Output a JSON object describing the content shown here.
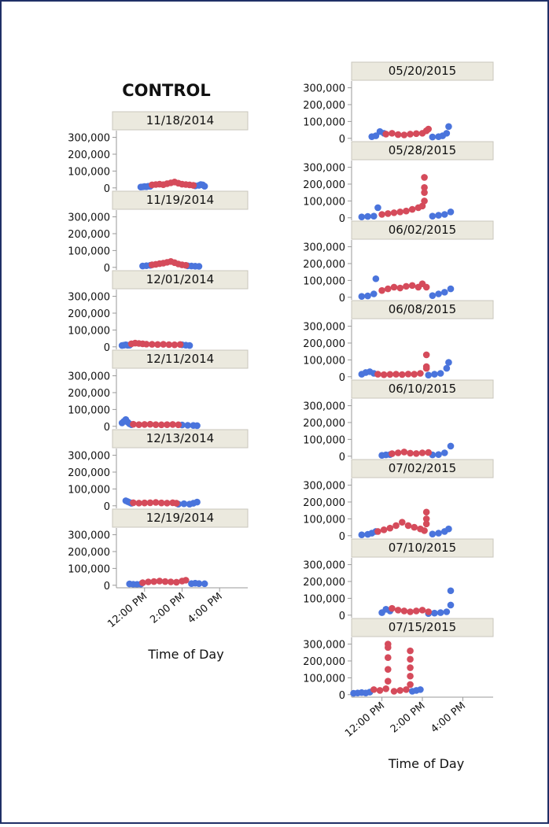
{
  "chart_data": [
    {
      "type": "scatter",
      "title": "CONTROL",
      "x_label": "Time of Day",
      "colors": [
        "#4a74dc",
        "#d54b5b"
      ],
      "xlim": [
        10.5,
        17.5
      ],
      "ylim": [
        -15000,
        340000
      ],
      "xticks": [
        {
          "value": 12,
          "label": "12:00 PM"
        },
        {
          "value": 14,
          "label": "2:00 PM"
        },
        {
          "value": 16,
          "label": "4:00 PM"
        }
      ],
      "yticks": [
        {
          "value": 0,
          "label": "0"
        },
        {
          "value": 100000,
          "label": "100,000"
        },
        {
          "value": 200000,
          "label": "200,000"
        },
        {
          "value": 300000,
          "label": "300,000"
        }
      ],
      "facets": [
        {
          "label": "11/18/2014",
          "series": [
            {
              "x": [
                11.8,
                11.9,
                12.0,
                12.1,
                12.2,
                12.3,
                14.7,
                14.9,
                15.0,
                15.1,
                15.2
              ],
              "values": [
                5000,
                6000,
                8000,
                7000,
                10000,
                9000,
                12000,
                15000,
                20000,
                18000,
                10000
              ]
            },
            {
              "x": [
                12.4,
                12.6,
                12.8,
                13.0,
                13.2,
                13.4,
                13.6,
                13.8,
                14.0,
                14.2,
                14.4,
                14.6
              ],
              "values": [
                18000,
                20000,
                22000,
                19000,
                25000,
                30000,
                35000,
                28000,
                22000,
                20000,
                18000,
                15000
              ]
            }
          ]
        },
        {
          "label": "11/19/2014",
          "series": [
            {
              "x": [
                11.9,
                12.1,
                12.3,
                14.3,
                14.5,
                14.7,
                14.9
              ],
              "values": [
                8000,
                10000,
                12000,
                9000,
                8000,
                7000,
                6000
              ]
            },
            {
              "x": [
                12.4,
                12.6,
                12.8,
                13.0,
                13.2,
                13.4,
                13.6,
                13.8,
                14.0,
                14.2
              ],
              "values": [
                15000,
                18000,
                22000,
                25000,
                30000,
                35000,
                28000,
                20000,
                15000,
                12000
              ]
            }
          ]
        },
        {
          "label": "12/01/2014",
          "series": [
            {
              "x": [
                10.8,
                10.9,
                11.0,
                11.1,
                11.2,
                14.0,
                14.2,
                14.4
              ],
              "values": [
                8000,
                10000,
                12000,
                9000,
                10000,
                12000,
                10000,
                8000
              ]
            },
            {
              "x": [
                11.3,
                11.5,
                11.7,
                11.9,
                12.1,
                12.4,
                12.7,
                13.0,
                13.3,
                13.6,
                13.9
              ],
              "values": [
                18000,
                22000,
                20000,
                18000,
                16000,
                15000,
                14000,
                15000,
                13000,
                12000,
                14000
              ]
            }
          ]
        },
        {
          "label": "12/11/2014",
          "series": [
            {
              "x": [
                10.8,
                10.9,
                11.0,
                11.1,
                11.2,
                11.3,
                14.0,
                14.3,
                14.6,
                14.8
              ],
              "values": [
                20000,
                30000,
                40000,
                25000,
                15000,
                10000,
                8000,
                6000,
                5000,
                4000
              ]
            },
            {
              "x": [
                11.4,
                11.7,
                12.0,
                12.3,
                12.6,
                12.9,
                13.2,
                13.5,
                13.8
              ],
              "values": [
                12000,
                10000,
                11000,
                12000,
                10000,
                9000,
                10000,
                11000,
                9000
              ]
            }
          ]
        },
        {
          "label": "12/13/2014",
          "series": [
            {
              "x": [
                11.0,
                11.1,
                11.2,
                11.3,
                13.8,
                14.1,
                14.4,
                14.6,
                14.8
              ],
              "values": [
                30000,
                25000,
                20000,
                15000,
                10000,
                12000,
                10000,
                15000,
                22000
              ]
            },
            {
              "x": [
                11.4,
                11.7,
                12.0,
                12.3,
                12.6,
                12.9,
                13.2,
                13.5,
                13.7
              ],
              "values": [
                18000,
                16000,
                17000,
                18000,
                20000,
                17000,
                16000,
                18000,
                15000
              ]
            }
          ]
        },
        {
          "label": "12/19/2014",
          "series": [
            {
              "x": [
                11.2,
                11.4,
                11.6,
                11.8,
                14.5,
                14.7,
                14.9,
                15.2
              ],
              "values": [
                8000,
                6000,
                5000,
                7000,
                10000,
                12000,
                10000,
                9000
              ]
            },
            {
              "x": [
                11.9,
                12.2,
                12.5,
                12.8,
                13.1,
                13.4,
                13.7,
                14.0,
                14.2
              ],
              "values": [
                15000,
                20000,
                22000,
                25000,
                22000,
                20000,
                18000,
                25000,
                30000
              ]
            }
          ]
        }
      ]
    },
    {
      "type": "scatter",
      "x_label": "Time of Day",
      "colors": [
        "#4a74dc",
        "#d54b5b"
      ],
      "xlim": [
        10.5,
        17.5
      ],
      "ylim": [
        -15000,
        340000
      ],
      "xticks": [
        {
          "value": 12,
          "label": "12:00 PM"
        },
        {
          "value": 14,
          "label": "2:00 PM"
        },
        {
          "value": 16,
          "label": "4:00 PM"
        }
      ],
      "yticks": [
        {
          "value": 0,
          "label": "0"
        },
        {
          "value": 100000,
          "label": "100,000"
        },
        {
          "value": 200000,
          "label": "200,000"
        },
        {
          "value": 300000,
          "label": "300,000"
        }
      ],
      "facets": [
        {
          "label": "05/20/2015",
          "series": [
            {
              "x": [
                11.5,
                11.7,
                11.9,
                12.1,
                14.5,
                14.8,
                15.0,
                15.2,
                15.3
              ],
              "values": [
                10000,
                15000,
                40000,
                30000,
                8000,
                10000,
                15000,
                30000,
                70000
              ]
            },
            {
              "x": [
                12.2,
                12.5,
                12.8,
                13.1,
                13.4,
                13.7,
                14.0,
                14.2,
                14.3
              ],
              "values": [
                25000,
                30000,
                22000,
                20000,
                25000,
                28000,
                30000,
                45000,
                55000
              ]
            }
          ]
        },
        {
          "label": "05/28/2015",
          "series": [
            {
              "x": [
                11.0,
                11.3,
                11.6,
                11.8,
                14.5,
                14.8,
                15.1,
                15.4
              ],
              "values": [
                5000,
                8000,
                10000,
                60000,
                10000,
                15000,
                20000,
                35000
              ]
            },
            {
              "x": [
                12.0,
                12.3,
                12.6,
                12.9,
                13.2,
                13.5,
                13.8,
                14.0,
                14.1,
                14.1,
                14.1,
                14.1
              ],
              "values": [
                20000,
                25000,
                30000,
                35000,
                40000,
                50000,
                60000,
                70000,
                100000,
                150000,
                180000,
                240000
              ]
            }
          ]
        },
        {
          "label": "06/02/2015",
          "series": [
            {
              "x": [
                11.0,
                11.3,
                11.6,
                11.7,
                14.5,
                14.8,
                15.1,
                15.4
              ],
              "values": [
                5000,
                8000,
                20000,
                110000,
                10000,
                20000,
                30000,
                50000
              ]
            },
            {
              "x": [
                12.0,
                12.3,
                12.6,
                12.9,
                13.2,
                13.5,
                13.8,
                14.0,
                14.2
              ],
              "values": [
                40000,
                50000,
                60000,
                55000,
                65000,
                70000,
                60000,
                80000,
                60000
              ]
            }
          ]
        },
        {
          "label": "06/08/2015",
          "series": [
            {
              "x": [
                11.0,
                11.2,
                11.4,
                11.6,
                14.3,
                14.6,
                14.9,
                15.2,
                15.3
              ],
              "values": [
                15000,
                25000,
                30000,
                20000,
                10000,
                15000,
                20000,
                50000,
                85000
              ]
            },
            {
              "x": [
                11.8,
                12.1,
                12.4,
                12.7,
                13.0,
                13.3,
                13.6,
                13.9,
                14.2,
                14.2,
                14.2
              ],
              "values": [
                15000,
                12000,
                14000,
                15000,
                13000,
                16000,
                15000,
                20000,
                50000,
                60000,
                130000
              ]
            }
          ]
        },
        {
          "label": "06/10/2015",
          "series": [
            {
              "x": [
                12.0,
                12.2,
                12.4,
                14.5,
                14.8,
                15.1,
                15.4
              ],
              "values": [
                5000,
                8000,
                10000,
                8000,
                10000,
                20000,
                60000
              ]
            },
            {
              "x": [
                12.5,
                12.8,
                13.1,
                13.4,
                13.7,
                14.0,
                14.3
              ],
              "values": [
                15000,
                20000,
                25000,
                18000,
                16000,
                20000,
                22000
              ]
            }
          ]
        },
        {
          "label": "07/02/2015",
          "series": [
            {
              "x": [
                11.0,
                11.3,
                11.5,
                11.7,
                14.5,
                14.8,
                15.1,
                15.3
              ],
              "values": [
                5000,
                8000,
                15000,
                25000,
                10000,
                15000,
                25000,
                40000
              ]
            },
            {
              "x": [
                11.8,
                12.1,
                12.4,
                12.7,
                13.0,
                13.3,
                13.6,
                13.9,
                14.1,
                14.2,
                14.2,
                14.2
              ],
              "values": [
                25000,
                35000,
                45000,
                60000,
                80000,
                60000,
                50000,
                40000,
                30000,
                70000,
                100000,
                140000
              ]
            }
          ]
        },
        {
          "label": "07/10/2015",
          "series": [
            {
              "x": [
                12.0,
                12.2,
                12.4,
                14.3,
                14.6,
                14.9,
                15.2,
                15.4,
                15.4
              ],
              "values": [
                15000,
                35000,
                25000,
                10000,
                12000,
                15000,
                20000,
                60000,
                145000
              ]
            },
            {
              "x": [
                12.5,
                12.8,
                13.1,
                13.4,
                13.7,
                14.0,
                14.3
              ],
              "values": [
                40000,
                30000,
                25000,
                20000,
                25000,
                30000,
                20000
              ]
            }
          ]
        },
        {
          "label": "07/15/2015",
          "series": [
            {
              "x": [
                10.6,
                10.8,
                11.0,
                11.2,
                11.4,
                13.5,
                13.7,
                13.9
              ],
              "values": [
                8000,
                10000,
                12000,
                10000,
                15000,
                20000,
                25000,
                30000
              ]
            },
            {
              "x": [
                11.6,
                11.9,
                12.2,
                12.3,
                12.3,
                12.3,
                12.3,
                12.3,
                12.6,
                12.9,
                13.2,
                13.4,
                13.4,
                13.4,
                13.4,
                13.4
              ],
              "values": [
                30000,
                25000,
                35000,
                80000,
                150000,
                220000,
                280000,
                300000,
                20000,
                25000,
                30000,
                60000,
                110000,
                160000,
                210000,
                260000
              ]
            }
          ]
        }
      ]
    }
  ]
}
